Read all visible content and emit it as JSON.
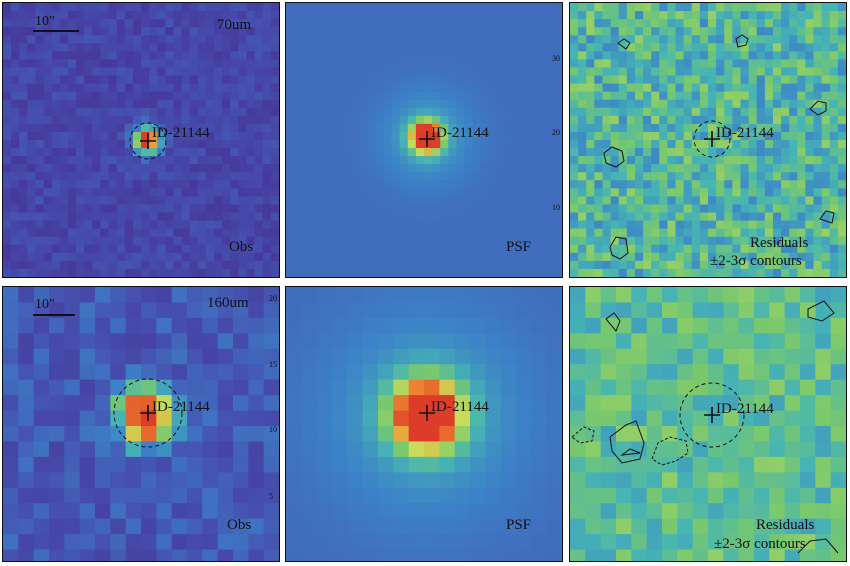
{
  "figure": {
    "source_id": "ID-21144",
    "scale_bar_label": "10\"",
    "rows": [
      {
        "band": "70um",
        "panels": [
          {
            "kind": "obs",
            "corner_label": "Obs",
            "tick_labels": []
          },
          {
            "kind": "psf",
            "corner_label": "PSF",
            "tick_labels": [
              "30",
              "20",
              "10"
            ]
          },
          {
            "kind": "residual",
            "corner_label": "Residuals",
            "corner_label_line2": "±2-3σ contours",
            "tick_labels": []
          }
        ]
      },
      {
        "band": "160um",
        "panels": [
          {
            "kind": "obs",
            "corner_label": "Obs",
            "tick_labels": [
              "20",
              "15",
              "10",
              "5"
            ]
          },
          {
            "kind": "psf",
            "corner_label": "PSF",
            "tick_labels": []
          },
          {
            "kind": "residual",
            "corner_label": "Residuals",
            "corner_label_line2": "±2-3σ contours",
            "tick_labels": []
          }
        ]
      }
    ]
  },
  "colors": {
    "background_purple": "#4b3f9c",
    "psf_background": "#3f6cb8",
    "peak_red": "#e0412a",
    "peak_orange": "#f08a34",
    "residual_green": "#7fc06a",
    "contour": "#111111"
  }
}
